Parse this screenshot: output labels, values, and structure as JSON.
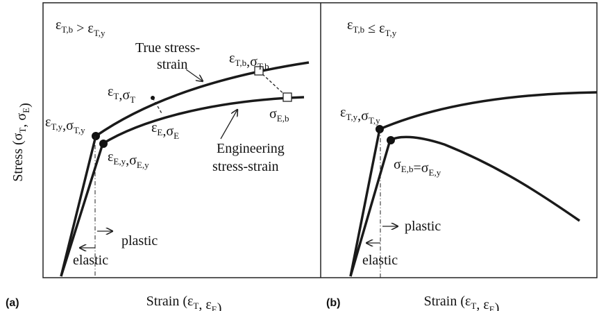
{
  "y_label": [
    [
      "Stress (σ",
      "T"
    ],
    [
      ", σ",
      "E"
    ],
    [
      ")"
    ]
  ],
  "panels": [
    {
      "id": "(a)",
      "x_label": [
        [
          "Strain (ε",
          "T"
        ],
        [
          ", ε",
          "E"
        ],
        [
          ")"
        ]
      ],
      "labels": [
        [
          [
            "ε",
            "T,b"
          ],
          [
            " > ε",
            "T,y"
          ]
        ],
        [
          [
            "True stress-"
          ]
        ],
        [
          [
            "strain"
          ]
        ],
        [
          [
            "ε",
            "T,b"
          ],
          [
            ",σ",
            "T,b"
          ]
        ],
        [
          [
            "ε",
            "T"
          ],
          [
            ",σ",
            "T"
          ]
        ],
        [
          [
            "σ",
            "E,b"
          ]
        ],
        [
          [
            "ε",
            "E"
          ],
          [
            ",σ",
            "E"
          ]
        ],
        [
          [
            "Engineering"
          ]
        ],
        [
          [
            "stress-strain"
          ]
        ],
        [
          [
            "ε",
            "T,y"
          ],
          [
            ",σ",
            "T,y"
          ]
        ],
        [
          [
            "ε",
            "E,y"
          ],
          [
            ",σ",
            "E,y"
          ]
        ],
        [
          [
            "plastic"
          ]
        ],
        [
          [
            "elastic"
          ]
        ]
      ]
    },
    {
      "id": "(b)",
      "x_label": [
        [
          "Strain (ε",
          "T"
        ],
        [
          ", ε",
          "E"
        ],
        [
          ")"
        ]
      ],
      "labels": [
        [
          [
            "ε",
            "T,b"
          ],
          [
            " ≤ ε",
            "T,y"
          ]
        ],
        [
          [
            "ε",
            "T,y"
          ],
          [
            ",σ",
            "T,y"
          ]
        ],
        [
          [
            "σ",
            "E,b"
          ],
          [
            "=σ",
            "E,y"
          ]
        ],
        [
          [
            "plastic"
          ]
        ],
        [
          [
            "elastic"
          ]
        ]
      ]
    }
  ]
}
